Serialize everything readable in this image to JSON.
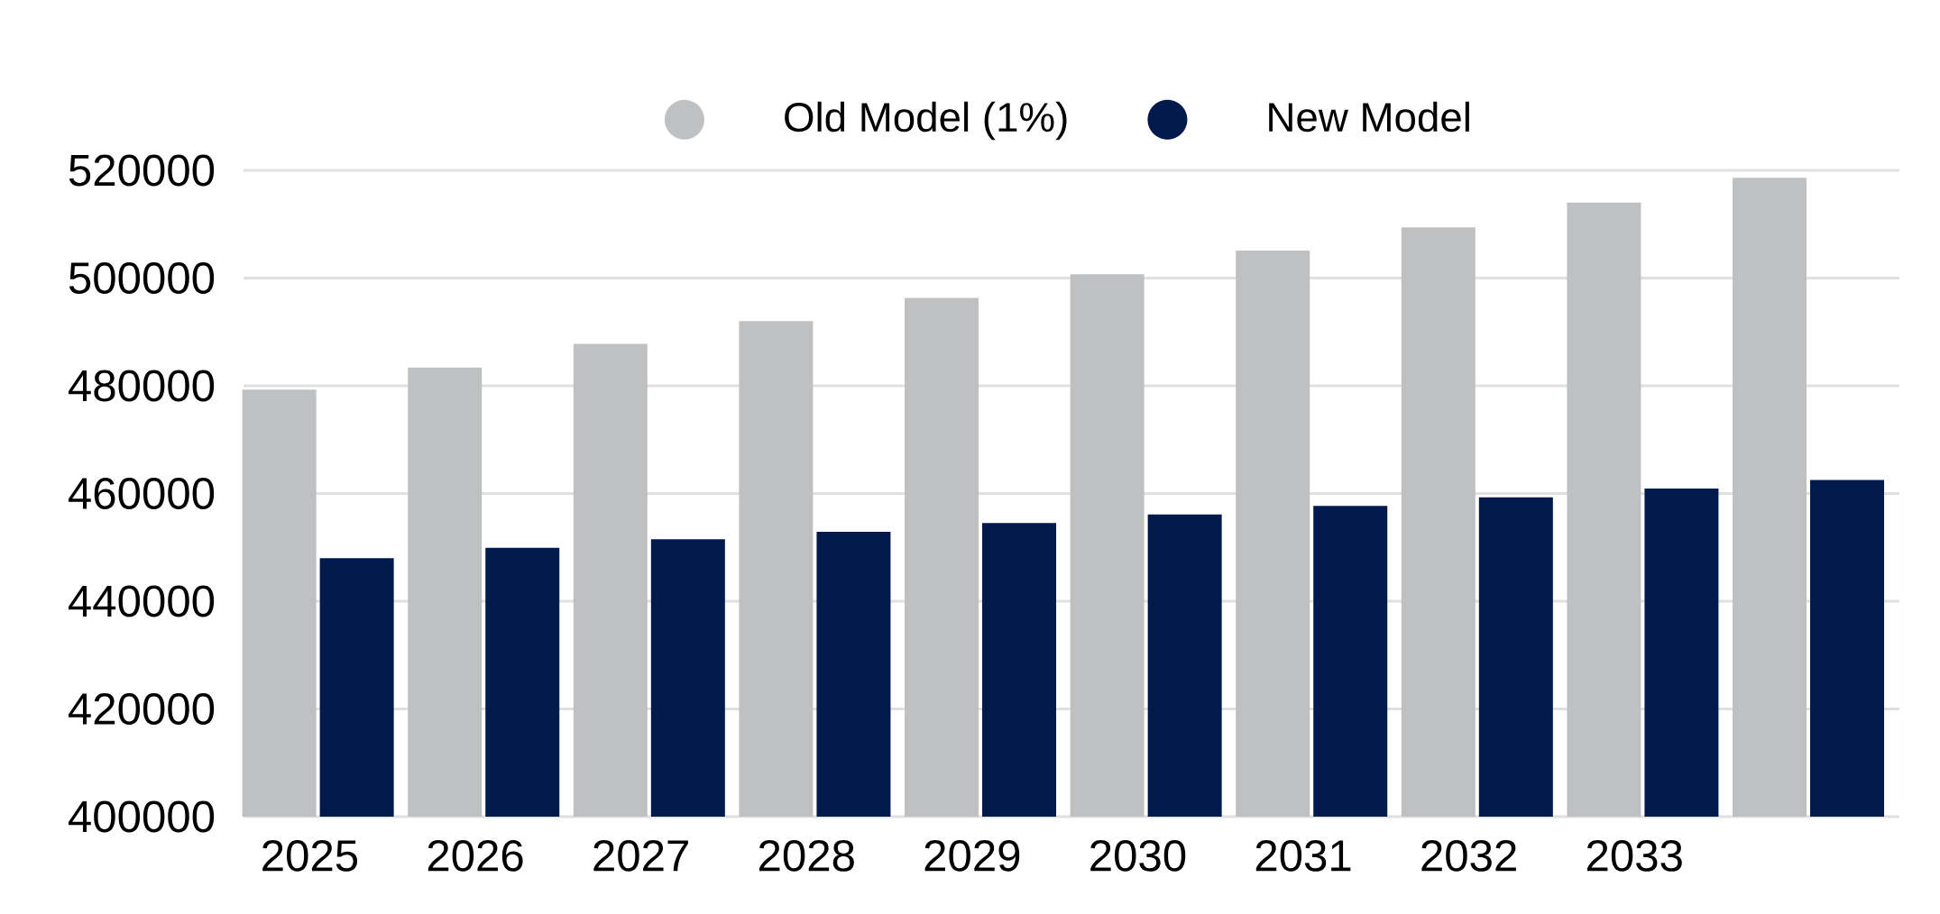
{
  "chart_data": {
    "type": "bar",
    "categories": [
      "2025",
      "2026",
      "2027",
      "2028",
      "2029",
      "2030",
      "2031",
      "2032",
      "2033",
      null
    ],
    "series": [
      {
        "name": "Old Model (1%)",
        "color": "#bfc0c2",
        "values": [
          479300,
          483400,
          487800,
          492000,
          496300,
          500700,
          505100,
          509400,
          514000,
          518600
        ]
      },
      {
        "name": "New Model",
        "color": "#001a4d",
        "values": [
          448000,
          449900,
          451500,
          452900,
          454500,
          456100,
          457700,
          459300,
          460900,
          462500
        ]
      }
    ],
    "ylim": [
      400000,
      520000
    ],
    "yticks": [
      400000,
      420000,
      440000,
      460000,
      480000,
      500000,
      520000
    ],
    "grid": "y",
    "legend": "top"
  }
}
